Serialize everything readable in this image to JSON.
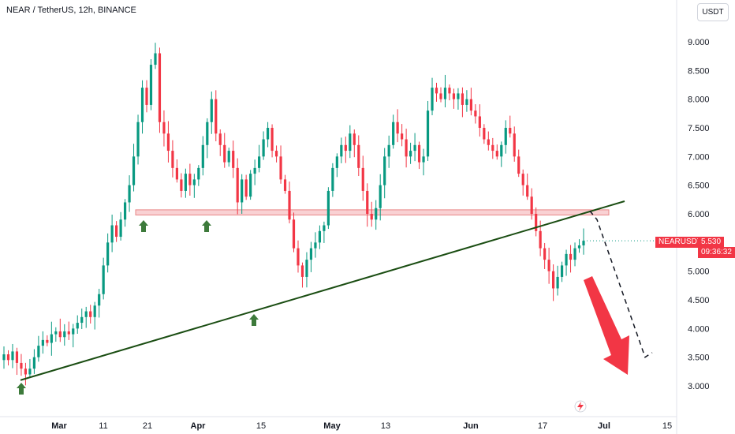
{
  "header": {
    "title": "NEAR / TetherUS, 12h, BINANCE",
    "unit_button": "USDT"
  },
  "price_tag": {
    "symbol": "NEARUSDT",
    "price": "5.530",
    "countdown": "09:36:32"
  },
  "colors": {
    "up": "#089981",
    "down": "#f23645",
    "support_zone": "#f8c9cc",
    "trendline": "#1a4d12",
    "arrow_up": "#3d7a3b",
    "arrow_down": "#f23645"
  },
  "icons": [
    "flash-icon",
    "arrow-up-icon",
    "arrow-down-icon"
  ],
  "chart_data": {
    "type": "candlestick",
    "title": "NEAR / TetherUS, 12h, BINANCE",
    "ylim": [
      2.7,
      9.5
    ],
    "yticks": [
      "9.000",
      "8.500",
      "8.000",
      "7.500",
      "7.000",
      "6.500",
      "6.000",
      "5.500",
      "5.000",
      "4.500",
      "4.000",
      "3.500",
      "3.000"
    ],
    "xticks": [
      {
        "label": "Mar",
        "bold": true
      },
      {
        "label": "11",
        "bold": false
      },
      {
        "label": "21",
        "bold": false
      },
      {
        "label": "Apr",
        "bold": true
      },
      {
        "label": "15",
        "bold": false
      },
      {
        "label": "May",
        "bold": true
      },
      {
        "label": "13",
        "bold": false
      },
      {
        "label": "Jun",
        "bold": true
      },
      {
        "label": "17",
        "bold": false
      },
      {
        "label": "Jul",
        "bold": true
      },
      {
        "label": "15",
        "bold": false
      }
    ],
    "support_zone": [
      5.98,
      6.07
    ],
    "trendline": {
      "from": [
        3.1
      ],
      "to": [
        6.22
      ]
    },
    "forecast_path": [
      6.05,
      5.9,
      3.5,
      3.58
    ],
    "last_price": 5.53,
    "closes": [
      3.55,
      3.45,
      3.6,
      3.4,
      3.3,
      3.2,
      3.3,
      3.5,
      3.7,
      3.8,
      3.75,
      3.9,
      3.95,
      3.85,
      3.95,
      3.9,
      4.0,
      4.1,
      4.2,
      4.3,
      4.2,
      4.4,
      4.6,
      5.1,
      5.5,
      5.8,
      5.6,
      5.9,
      6.2,
      6.5,
      7.0,
      7.6,
      8.2,
      7.9,
      8.6,
      8.8,
      7.6,
      7.4,
      7.1,
      6.8,
      6.6,
      6.4,
      6.7,
      6.5,
      6.6,
      6.8,
      7.2,
      7.6,
      8.0,
      7.4,
      7.2,
      6.9,
      7.1,
      6.8,
      6.2,
      6.6,
      6.3,
      6.7,
      6.8,
      7.0,
      7.3,
      7.5,
      7.1,
      7.0,
      6.6,
      6.4,
      5.9,
      5.4,
      5.1,
      4.9,
      5.2,
      5.4,
      5.5,
      5.7,
      5.8,
      6.4,
      6.8,
      7.0,
      7.2,
      7.1,
      7.4,
      7.2,
      6.8,
      6.4,
      6.0,
      5.9,
      6.1,
      6.5,
      7.0,
      7.2,
      7.6,
      7.4,
      7.3,
      7.0,
      7.1,
      7.2,
      6.9,
      7.0,
      7.8,
      8.2,
      8.1,
      8.0,
      8.2,
      8.1,
      8.0,
      8.1,
      7.9,
      8.0,
      7.8,
      7.7,
      7.5,
      7.3,
      7.2,
      7.1,
      7.0,
      7.2,
      7.5,
      7.4,
      7.0,
      6.7,
      6.5,
      6.3,
      6.0,
      5.7,
      5.4,
      5.2,
      5.0,
      4.7,
      4.9,
      5.1,
      5.3,
      5.2,
      5.4,
      5.45,
      5.53
    ]
  }
}
